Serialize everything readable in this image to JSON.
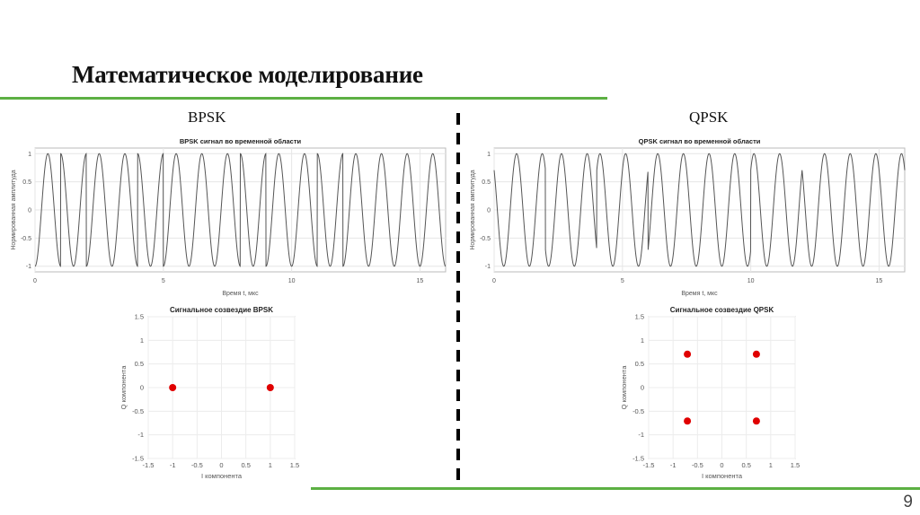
{
  "slide": {
    "title": "Математическое моделирование",
    "page_number": "9",
    "left_label": "BPSK",
    "right_label": "QPSK",
    "accent_color": "#5cb043"
  },
  "chart_data": [
    {
      "type": "line",
      "title": "BPSK сигнал во временной области",
      "xlabel": "Время t, мкс",
      "ylabel": "Нормированная амплитуда",
      "xlim": [
        0,
        16
      ],
      "ylim": [
        -1.1,
        1.1
      ],
      "xticks": [
        0,
        5,
        10,
        15
      ],
      "yticks": [
        -1,
        -0.5,
        0,
        0.5,
        1
      ],
      "grid": true,
      "carrier_freq_mhz": 1,
      "symbol_duration_us": 1,
      "phases_deg_per_symbol": [
        180,
        0,
        180,
        180,
        0,
        180,
        180,
        180,
        0,
        180,
        180,
        0,
        180,
        180,
        180,
        180
      ],
      "line_color": "#555555"
    },
    {
      "type": "line",
      "title": "QPSK сигнал во временной области",
      "xlabel": "Время t, мкс",
      "ylabel": "Нормированная амплитуда",
      "xlim": [
        0,
        16
      ],
      "ylim": [
        -1.1,
        1.1
      ],
      "xticks": [
        0,
        5,
        10,
        15
      ],
      "yticks": [
        -1,
        -0.5,
        0,
        0.5,
        1
      ],
      "grid": true,
      "carrier_freq_mhz": 1,
      "symbol_duration_us": 2,
      "phases_deg_per_symbol": [
        45,
        135,
        315,
        225,
        225,
        315,
        45,
        45
      ],
      "line_color": "#555555"
    },
    {
      "type": "scatter",
      "title": "Сигнальное созвездие BPSK",
      "xlabel": "I компонента",
      "ylabel": "Q компонента",
      "xlim": [
        -1.5,
        1.5
      ],
      "ylim": [
        -1.5,
        1.5
      ],
      "xticks": [
        -1.5,
        -1,
        -0.5,
        0,
        0.5,
        1,
        1.5
      ],
      "yticks": [
        -1.5,
        -1,
        -0.5,
        0,
        0.5,
        1,
        1.5
      ],
      "grid": true,
      "points": [
        [
          -1,
          0
        ],
        [
          1,
          0
        ]
      ],
      "marker_color": "#e00000"
    },
    {
      "type": "scatter",
      "title": "Сигнальное созвездие QPSK",
      "xlabel": "I компонента",
      "ylabel": "Q компонента",
      "xlim": [
        -1.5,
        1.5
      ],
      "ylim": [
        -1.5,
        1.5
      ],
      "xticks": [
        -1.5,
        -1,
        -0.5,
        0,
        0.5,
        1,
        1.5
      ],
      "yticks": [
        -1.5,
        -1,
        -0.5,
        0,
        0.5,
        1,
        1.5
      ],
      "grid": true,
      "points": [
        [
          -0.707,
          0.707
        ],
        [
          0.707,
          0.707
        ],
        [
          -0.707,
          -0.707
        ],
        [
          0.707,
          -0.707
        ]
      ],
      "marker_color": "#e00000"
    }
  ]
}
